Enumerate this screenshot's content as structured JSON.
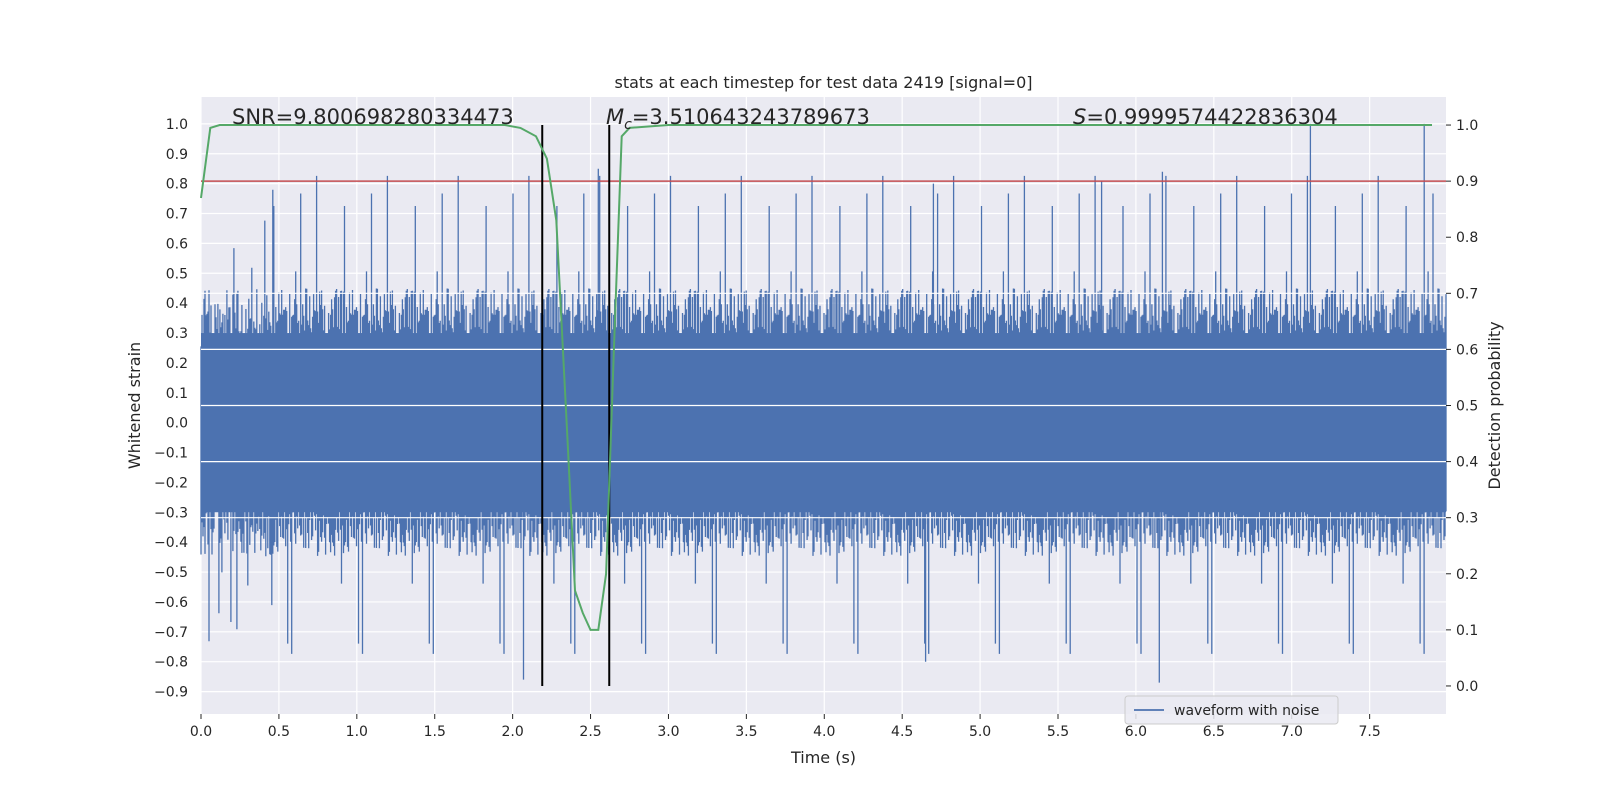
{
  "chart_data": {
    "type": "line",
    "title": "stats at each timestep for test data 2419 [signal=0]",
    "xlabel": "Time (s)",
    "ylabel": "Whitened strain",
    "y2label": "Detection probability",
    "xlim": [
      0.0,
      7.99
    ],
    "ylim": [
      -0.975,
      1.09
    ],
    "y2lim": [
      -0.05,
      1.05
    ],
    "xticks": [
      "0.0",
      "0.5",
      "1.0",
      "1.5",
      "2.0",
      "2.5",
      "3.0",
      "3.5",
      "4.0",
      "4.5",
      "5.0",
      "5.5",
      "6.0",
      "6.5",
      "7.0",
      "7.5"
    ],
    "yticks": [
      "-0.9",
      "-0.8",
      "-0.7",
      "-0.6",
      "-0.5",
      "-0.4",
      "-0.3",
      "-0.2",
      "-0.1",
      "0.0",
      "0.1",
      "0.2",
      "0.3",
      "0.4",
      "0.5",
      "0.6",
      "0.7",
      "0.8",
      "0.9",
      "1.0"
    ],
    "y2ticks": [
      "0.0",
      "0.1",
      "0.2",
      "0.3",
      "0.4",
      "0.5",
      "0.6",
      "0.7",
      "0.8",
      "0.9",
      "1.0"
    ],
    "annotations": {
      "snr": "SNR=9.800698280334473",
      "mc_symbol": "M",
      "mc_sub": "c",
      "mc_value": "=3.510643243789673",
      "s_symbol": "S",
      "s_value": "=0.9999574422836304"
    },
    "threshold": 0.9,
    "vlines": [
      2.19,
      2.62
    ],
    "legend": {
      "label": "waveform with noise",
      "position": "lower-right"
    },
    "series": [
      {
        "name": "waveform with noise",
        "axis": "left",
        "color": "#4c72b0",
        "description": "whitened strain noise, dense signal",
        "envelope_upper": 0.45,
        "envelope_lower": -0.45,
        "core_upper": 0.3,
        "core_lower": -0.3,
        "peak_max": 1.0,
        "peak_min": -0.87
      },
      {
        "name": "detection probability",
        "axis": "right",
        "color": "#55a868",
        "x": [
          0.0,
          0.06,
          0.12,
          0.5,
          1.0,
          1.5,
          1.95,
          2.05,
          2.15,
          2.22,
          2.28,
          2.35,
          2.4,
          2.45,
          2.5,
          2.55,
          2.6,
          2.65,
          2.7,
          2.75,
          3.0,
          4.0,
          5.0,
          6.0,
          7.0,
          7.9
        ],
        "y": [
          0.87,
          0.995,
          1.0,
          1.0,
          1.0,
          1.0,
          1.0,
          0.995,
          0.98,
          0.94,
          0.83,
          0.45,
          0.17,
          0.13,
          0.1,
          0.1,
          0.2,
          0.6,
          0.98,
          0.995,
          1.0,
          1.0,
          1.0,
          1.0,
          1.0,
          1.0
        ]
      }
    ],
    "colors": {
      "background": "#eaeaf2",
      "grid": "#ffffff",
      "threshold": "#c44e52",
      "vline": "#000000",
      "probability": "#55a868",
      "waveform": "#4c72b0"
    }
  }
}
